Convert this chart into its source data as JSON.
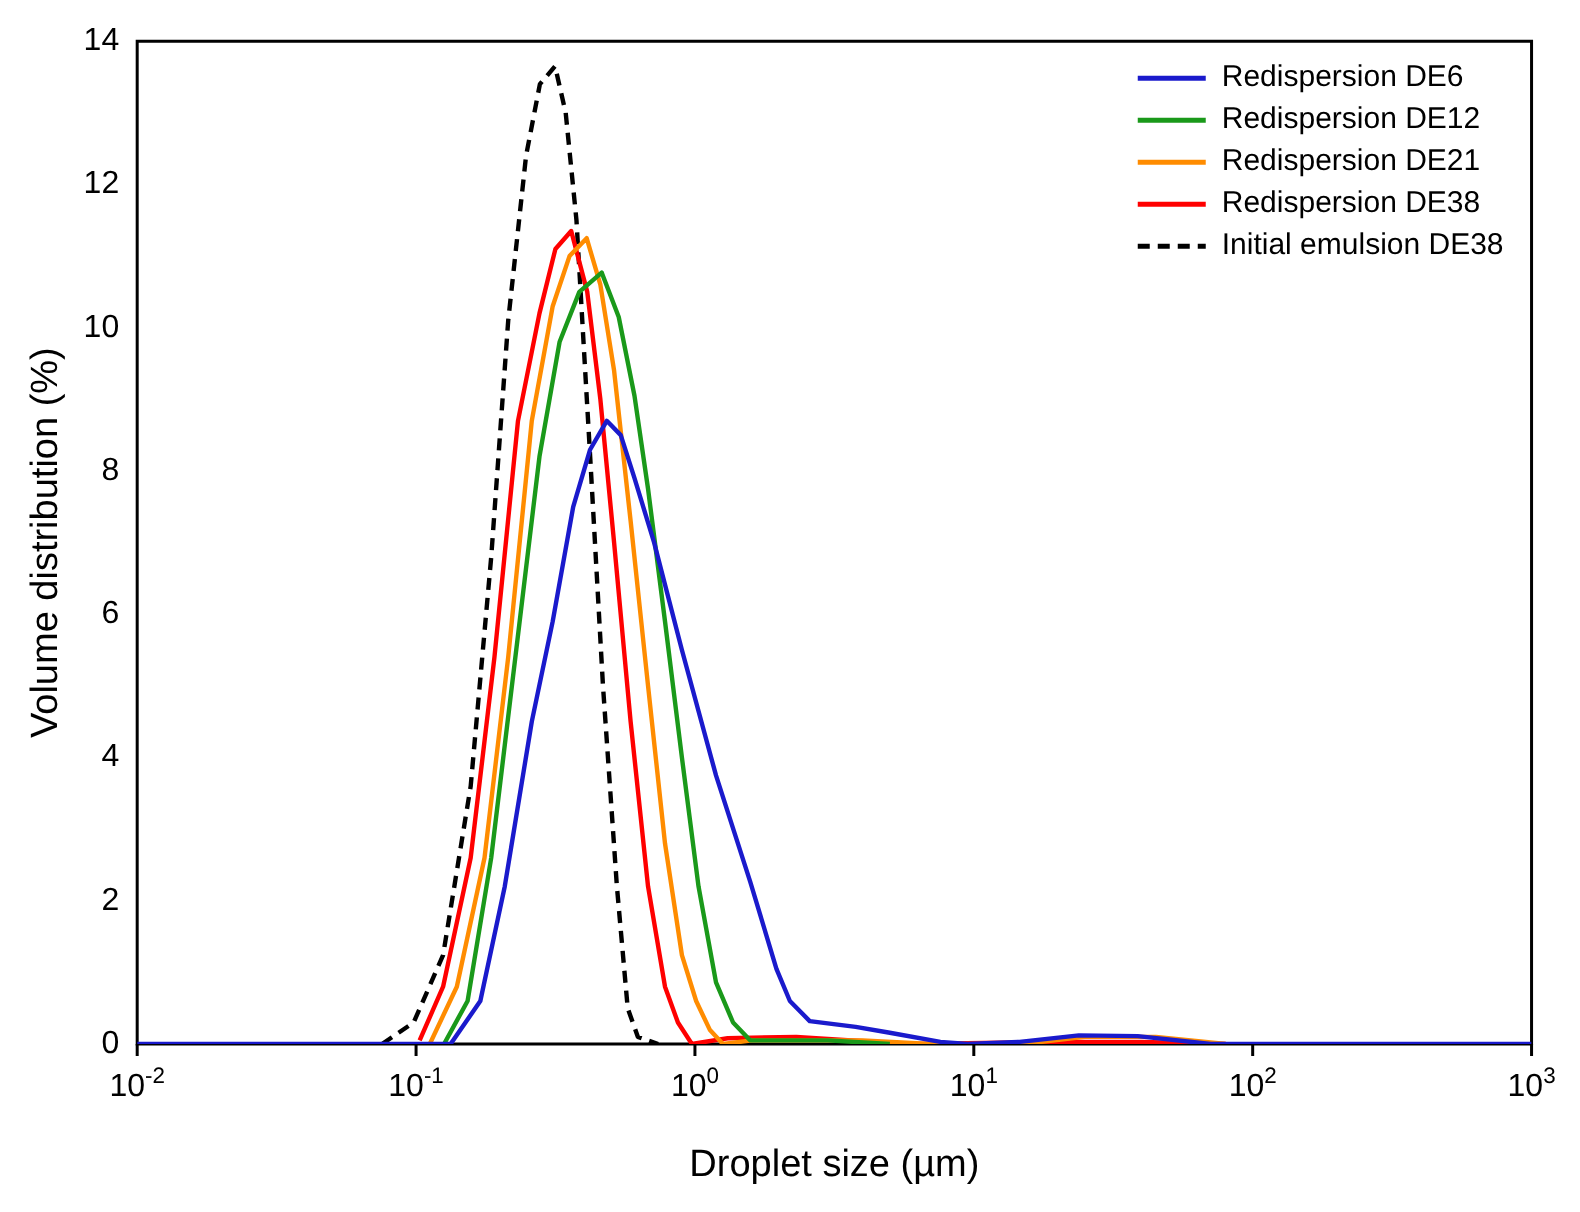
{
  "chart_data": {
    "type": "line",
    "xlabel": "Droplet size (µm)",
    "ylabel": "Volume distribution (%)",
    "log": "x",
    "grid": false,
    "legend": "top right",
    "xlim": [
      0.01,
      1000
    ],
    "xticks": [
      {
        "value": 0.01,
        "label": "10$^{-2}$"
      },
      {
        "value": 0.1,
        "label": "10$^{-1}$"
      },
      {
        "value": 1,
        "label": "10$^{0}$"
      },
      {
        "value": 10,
        "label": "10$^{1}$"
      },
      {
        "value": 100,
        "label": "10$^{2}$"
      },
      {
        "value": 1000,
        "label": "10$^{3}$"
      }
    ],
    "ylim": [
      0,
      14
    ],
    "yticks": [
      0,
      2,
      4,
      6,
      8,
      10,
      12,
      14
    ],
    "series": [
      {
        "name": "Redispersion DE6",
        "color": "#1a1acc",
        "x": [
          0.01,
          0.133,
          0.17,
          0.208,
          0.26,
          0.309,
          0.366,
          0.421,
          0.483,
          0.542,
          0.607,
          0.714,
          0.898,
          1.19,
          1.58,
          1.96,
          2.19,
          2.58,
          3.77,
          4.94,
          7.59,
          9.48,
          14.6,
          23.8,
          38.7,
          70.8,
          1000
        ],
        "values": [
          0,
          0,
          0.6,
          2.2,
          4.5,
          5.9,
          7.5,
          8.3,
          8.7,
          8.5,
          7.9,
          7,
          5.5,
          3.75,
          2.26,
          1.05,
          0.6,
          0.32,
          0.24,
          0.16,
          0.03,
          0,
          0.03,
          0.12,
          0.11,
          0,
          0
        ]
      },
      {
        "name": "Redispersion DE12",
        "color": "#1a991a",
        "x": [
          0.126,
          0.153,
          0.186,
          0.227,
          0.277,
          0.327,
          0.385,
          0.463,
          0.533,
          0.607,
          0.679,
          0.781,
          0.898,
          1.03,
          1.19,
          1.37,
          1.58,
          1.87,
          3,
          5
        ],
        "values": [
          0,
          0.6,
          2.6,
          5.4,
          8.2,
          9.8,
          10.5,
          10.77,
          10.15,
          9.05,
          7.75,
          5.9,
          4,
          2.2,
          0.86,
          0.3,
          0.05,
          0.05,
          0.05,
          0
        ]
      },
      {
        "name": "Redispersion DE21",
        "color": "#ff8c00",
        "x": [
          0.112,
          0.14,
          0.176,
          0.214,
          0.26,
          0.309,
          0.355,
          0.409,
          0.458,
          0.513,
          0.588,
          0.679,
          0.781,
          0.898,
          1.01,
          1.13,
          1.26,
          1.6,
          4,
          7,
          15,
          25,
          45,
          80
        ],
        "values": [
          0,
          0.8,
          2.6,
          5.4,
          8.7,
          10.3,
          11,
          11.25,
          10.6,
          9.4,
          7.3,
          5,
          2.8,
          1.24,
          0.6,
          0.2,
          0,
          0.05,
          0.05,
          0,
          0,
          0.1,
          0.1,
          0
        ]
      },
      {
        "name": "Redispersion DE38",
        "color": "#ff0000",
        "x": [
          0.103,
          0.125,
          0.157,
          0.191,
          0.232,
          0.277,
          0.316,
          0.36,
          0.411,
          0.458,
          0.513,
          0.588,
          0.679,
          0.781,
          0.869,
          0.975,
          1.31,
          2.31,
          4.44,
          6.2,
          20,
          40,
          80
        ],
        "values": [
          0.05,
          0.8,
          2.6,
          5.4,
          8.7,
          10.2,
          11.1,
          11.35,
          10.5,
          9,
          7,
          4.5,
          2.2,
          0.8,
          0.3,
          0,
          0.08,
          0.1,
          0.03,
          0,
          0.03,
          0.03,
          0
        ]
      },
      {
        "name": "Initial emulsion DE38",
        "color": "#000000",
        "line_style": "dashed",
        "x": [
          0.0755,
          0.098,
          0.125,
          0.157,
          0.186,
          0.214,
          0.248,
          0.278,
          0.315,
          0.344,
          0.376,
          0.421,
          0.468,
          0.525,
          0.574,
          0.624,
          0.738
        ],
        "values": [
          0,
          0.3,
          1.24,
          3.6,
          6.8,
          10.1,
          12.4,
          13.4,
          13.65,
          13,
          11.5,
          8.2,
          5,
          2.2,
          0.5,
          0.1,
          0
        ]
      }
    ]
  }
}
